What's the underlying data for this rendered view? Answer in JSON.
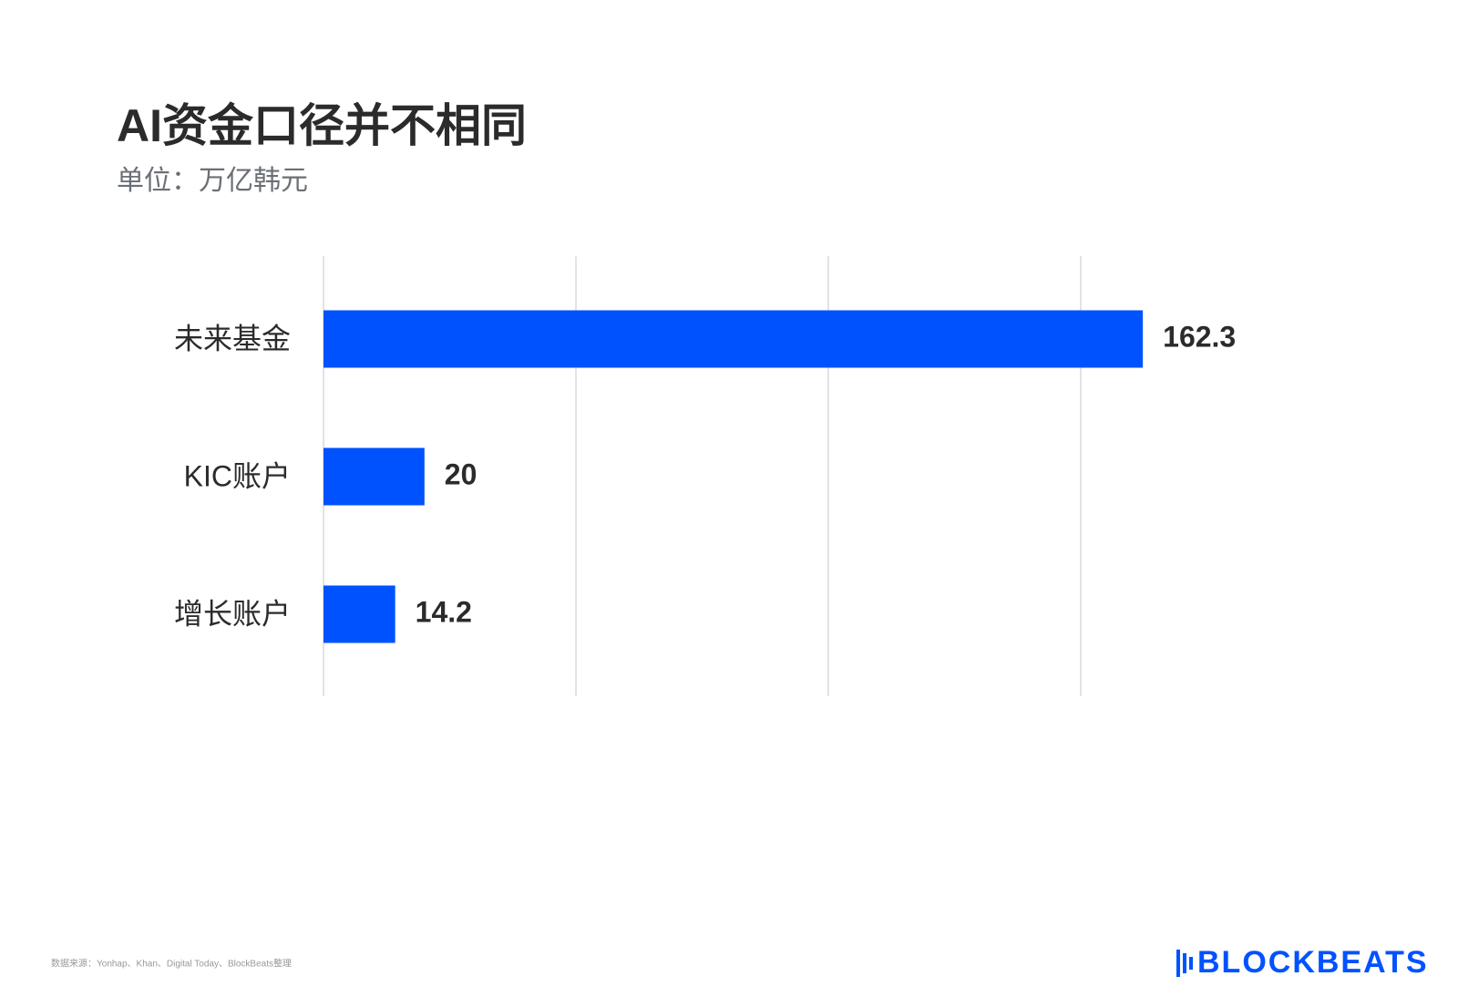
{
  "chart_data": {
    "type": "bar",
    "orientation": "horizontal",
    "title": "AI资金口径并不相同",
    "subtitle": "单位：万亿韩元",
    "categories": [
      "未来基金",
      "KIC账户",
      "增长账户"
    ],
    "values": [
      162.3,
      20,
      14.2
    ],
    "color": "#0052ff",
    "xlim": [
      0,
      200
    ],
    "xticks": [
      0,
      50,
      100,
      150
    ],
    "grid": true,
    "source": "数据来源：Yonhap、Khan、Digital Today、BlockBeats整理",
    "brand": "BLOCKBEATS"
  }
}
